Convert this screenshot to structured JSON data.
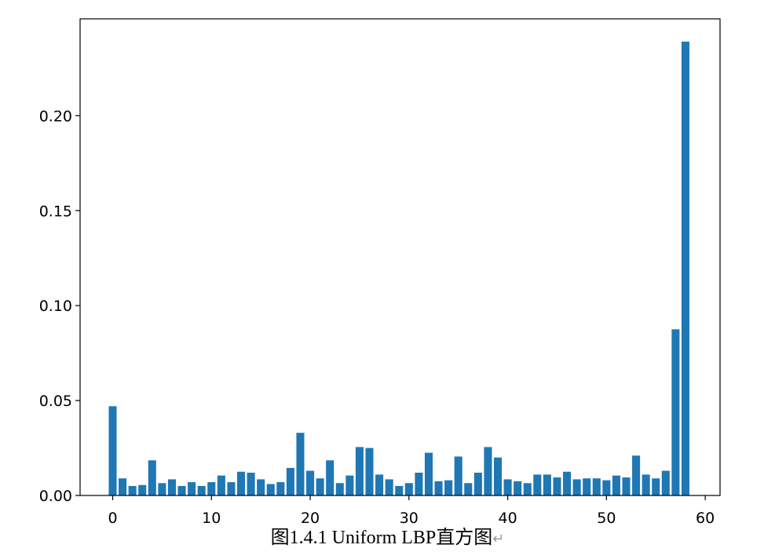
{
  "chart_data": {
    "type": "bar",
    "title": "",
    "xlabel": "",
    "ylabel": "",
    "x": [
      0,
      1,
      2,
      3,
      4,
      5,
      6,
      7,
      8,
      9,
      10,
      11,
      12,
      13,
      14,
      15,
      16,
      17,
      18,
      19,
      20,
      21,
      22,
      23,
      24,
      25,
      26,
      27,
      28,
      29,
      30,
      31,
      32,
      33,
      34,
      35,
      36,
      37,
      38,
      39,
      40,
      41,
      42,
      43,
      44,
      45,
      46,
      47,
      48,
      49,
      50,
      51,
      52,
      53,
      54,
      55,
      56,
      57,
      58
    ],
    "values": [
      0.047,
      0.009,
      0.005,
      0.0055,
      0.0185,
      0.0065,
      0.0085,
      0.005,
      0.007,
      0.005,
      0.007,
      0.0105,
      0.007,
      0.0125,
      0.012,
      0.0085,
      0.006,
      0.007,
      0.0145,
      0.033,
      0.013,
      0.009,
      0.0185,
      0.0065,
      0.0105,
      0.0255,
      0.025,
      0.011,
      0.0085,
      0.005,
      0.0065,
      0.012,
      0.0225,
      0.0075,
      0.008,
      0.0205,
      0.0065,
      0.012,
      0.0255,
      0.02,
      0.0085,
      0.0075,
      0.0065,
      0.011,
      0.011,
      0.0095,
      0.0125,
      0.0085,
      0.009,
      0.009,
      0.008,
      0.0105,
      0.0095,
      0.021,
      0.011,
      0.009,
      0.013,
      0.0875,
      0.239
    ],
    "xlim": [
      -3.3,
      61.5
    ],
    "ylim": [
      0,
      0.251
    ],
    "xticks": [
      0,
      10,
      20,
      30,
      40,
      50,
      60
    ],
    "yticks": [
      0,
      0.05,
      0.1,
      0.15,
      0.2
    ],
    "xtick_labels": [
      "0",
      "10",
      "20",
      "30",
      "40",
      "50",
      "60"
    ],
    "ytick_labels": [
      "0.00",
      "0.05",
      "0.10",
      "0.15",
      "0.20"
    ],
    "bar_color": "#1f77b4",
    "grid": false,
    "legend": "none"
  },
  "caption": {
    "text": "图1.4.1  Uniform LBP直方图",
    "return_mark": "↵"
  }
}
